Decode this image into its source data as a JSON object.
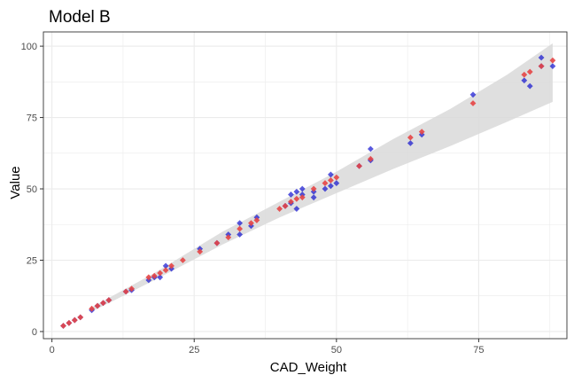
{
  "chart_data": {
    "type": "scatter",
    "title": "Model B",
    "xlabel": "CAD_Weight",
    "ylabel": "Value",
    "xlim": [
      -1.5,
      90.5
    ],
    "ylim": [
      -2.5,
      105
    ],
    "x_ticks": [
      0,
      25,
      50,
      75
    ],
    "y_ticks": [
      0,
      25,
      50,
      75,
      100
    ],
    "grid": true,
    "legend": "none",
    "colors": {
      "observed": "#0000cc",
      "fitted": "#e64545",
      "confidence_band": "#d9d9d9",
      "grid": "#ebebeb",
      "panel_border": "#333333"
    },
    "confidence_band": {
      "x": [
        7,
        18,
        30,
        40,
        50,
        60,
        70,
        80,
        88
      ],
      "lower": [
        7.0,
        18.0,
        30.5,
        40.0,
        48.5,
        57.0,
        65.0,
        73.5,
        80.5
      ],
      "upper": [
        8.5,
        20.5,
        35.0,
        45.5,
        56.0,
        67.5,
        78.0,
        90.0,
        101.0
      ]
    },
    "series": [
      {
        "role": "observed",
        "points": [
          [
            2,
            2
          ],
          [
            3,
            3
          ],
          [
            4,
            4
          ],
          [
            5,
            5
          ],
          [
            7,
            7.5
          ],
          [
            8,
            9
          ],
          [
            9,
            10
          ],
          [
            10,
            11
          ],
          [
            13,
            14
          ],
          [
            14,
            14.5
          ],
          [
            17,
            18
          ],
          [
            18,
            19
          ],
          [
            19,
            19
          ],
          [
            20,
            23
          ],
          [
            21,
            22
          ],
          [
            26,
            29
          ],
          [
            29,
            31
          ],
          [
            31,
            34
          ],
          [
            33,
            34
          ],
          [
            33,
            38
          ],
          [
            35,
            37
          ],
          [
            36,
            40
          ],
          [
            41,
            44
          ],
          [
            42,
            45
          ],
          [
            42,
            48
          ],
          [
            43,
            43
          ],
          [
            43,
            49
          ],
          [
            44,
            50
          ],
          [
            44,
            48
          ],
          [
            46,
            47
          ],
          [
            46,
            49
          ],
          [
            48,
            50
          ],
          [
            49,
            51
          ],
          [
            49,
            55
          ],
          [
            50,
            52
          ],
          [
            54,
            58
          ],
          [
            56,
            60
          ],
          [
            56,
            64
          ],
          [
            63,
            66
          ],
          [
            65,
            69
          ],
          [
            74,
            83
          ],
          [
            83,
            88
          ],
          [
            84,
            86
          ],
          [
            86,
            93
          ],
          [
            86,
            96
          ],
          [
            88,
            93
          ]
        ]
      },
      {
        "role": "fitted",
        "points": [
          [
            2,
            2
          ],
          [
            3,
            3
          ],
          [
            4,
            4
          ],
          [
            5,
            5
          ],
          [
            7,
            8
          ],
          [
            8,
            9
          ],
          [
            9,
            10
          ],
          [
            10,
            11
          ],
          [
            13,
            14
          ],
          [
            14,
            15
          ],
          [
            17,
            19
          ],
          [
            18,
            19.5
          ],
          [
            19,
            20.5
          ],
          [
            20,
            21.5
          ],
          [
            21,
            23
          ],
          [
            23,
            25
          ],
          [
            26,
            28
          ],
          [
            29,
            31
          ],
          [
            31,
            33
          ],
          [
            33,
            36
          ],
          [
            35,
            38
          ],
          [
            36,
            39
          ],
          [
            40,
            43
          ],
          [
            41,
            44
          ],
          [
            42,
            45.5
          ],
          [
            43,
            46.5
          ],
          [
            44,
            47
          ],
          [
            46,
            50
          ],
          [
            48,
            52
          ],
          [
            49,
            53
          ],
          [
            50,
            54
          ],
          [
            54,
            58
          ],
          [
            56,
            60.5
          ],
          [
            63,
            68
          ],
          [
            65,
            70
          ],
          [
            74,
            80
          ],
          [
            83,
            90
          ],
          [
            84,
            91
          ],
          [
            86,
            93
          ],
          [
            88,
            95
          ]
        ]
      }
    ]
  }
}
